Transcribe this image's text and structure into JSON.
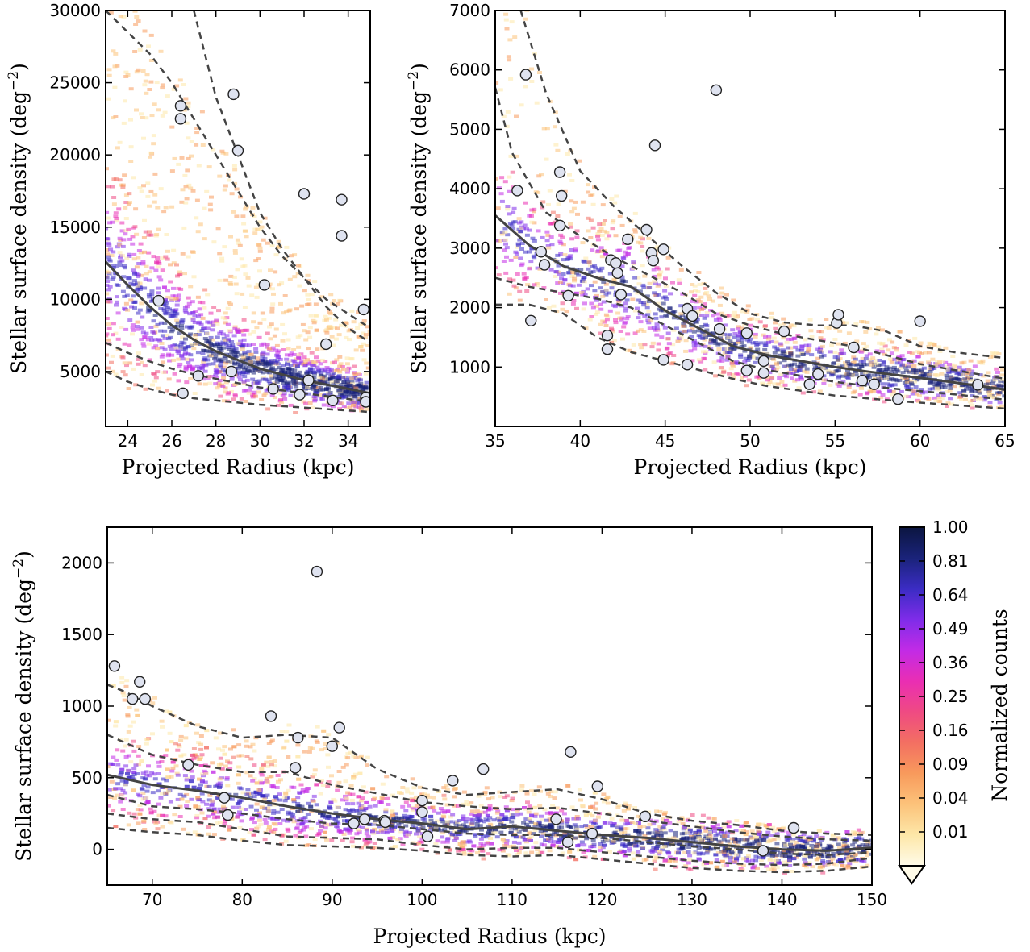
{
  "chart_data": [
    {
      "type": "scatter",
      "panel": "top-left",
      "xlabel": "Projected Radius (kpc)",
      "ylabel_main": "Stellar surface density",
      "ylabel_unit": "(deg",
      "ylabel_exp": "−2",
      "ylabel_close": ")",
      "xlim": [
        23,
        35
      ],
      "ylim": [
        1200,
        30000
      ],
      "xticks": [
        24,
        26,
        28,
        30,
        32,
        34
      ],
      "yticks": [
        5000,
        10000,
        15000,
        20000,
        25000,
        30000
      ],
      "density_color_range": [
        0.01,
        1.0
      ],
      "median_curve": {
        "x": [
          23,
          24,
          25,
          26,
          27,
          28,
          29,
          30,
          31,
          32,
          33,
          34,
          35
        ],
        "y": [
          12600,
          11000,
          9500,
          8200,
          7200,
          6400,
          5800,
          5200,
          4800,
          4400,
          4100,
          3800,
          3500
        ]
      },
      "band_curves": [
        {
          "x": [
            23,
            24,
            25,
            26,
            27,
            28,
            29,
            30,
            31,
            32,
            33,
            34,
            35
          ],
          "y": [
            30000,
            28500,
            27000,
            25000,
            22500,
            20000,
            17500,
            15000,
            13000,
            11500,
            10000,
            9000,
            8000
          ]
        },
        {
          "x": [
            27,
            28,
            29,
            30,
            31,
            32,
            33,
            34,
            35
          ],
          "y": [
            30000,
            24000,
            20000,
            16000,
            13500,
            11500,
            9500,
            8000,
            7000
          ]
        },
        {
          "x": [
            23,
            24,
            25,
            26,
            27,
            28,
            29,
            30,
            31,
            32,
            33,
            34,
            35
          ],
          "y": [
            7000,
            6300,
            5700,
            5200,
            4800,
            4500,
            4200,
            3900,
            3700,
            3500,
            3300,
            3100,
            2900
          ]
        },
        {
          "x": [
            23,
            24,
            25,
            26,
            27,
            28,
            29,
            30,
            31,
            32,
            33,
            34,
            35
          ],
          "y": [
            5000,
            4300,
            3800,
            3400,
            3150,
            3000,
            2850,
            2700,
            2600,
            2500,
            2400,
            2300,
            2200
          ]
        }
      ],
      "points": [
        {
          "x": 25.4,
          "y": 9900
        },
        {
          "x": 26.4,
          "y": 23400
        },
        {
          "x": 26.4,
          "y": 22500
        },
        {
          "x": 26.5,
          "y": 3500
        },
        {
          "x": 27.2,
          "y": 4700
        },
        {
          "x": 28.7,
          "y": 5000
        },
        {
          "x": 28.8,
          "y": 24200
        },
        {
          "x": 29.0,
          "y": 20300
        },
        {
          "x": 30.2,
          "y": 11000
        },
        {
          "x": 30.6,
          "y": 3800
        },
        {
          "x": 31.8,
          "y": 3400
        },
        {
          "x": 32.0,
          "y": 17300
        },
        {
          "x": 32.2,
          "y": 4400
        },
        {
          "x": 33.0,
          "y": 6900
        },
        {
          "x": 33.3,
          "y": 3000
        },
        {
          "x": 33.7,
          "y": 16900
        },
        {
          "x": 33.7,
          "y": 14400
        },
        {
          "x": 34.7,
          "y": 9300
        },
        {
          "x": 34.8,
          "y": 3200
        },
        {
          "x": 34.8,
          "y": 2900
        }
      ]
    },
    {
      "type": "scatter",
      "panel": "top-right",
      "xlabel": "Projected Radius (kpc)",
      "ylabel_main": "Stellar surface density",
      "ylabel_unit": "(deg",
      "ylabel_exp": "−2",
      "ylabel_close": ")",
      "xlim": [
        35,
        65
      ],
      "ylim": [
        0,
        7000
      ],
      "xticks": [
        35,
        40,
        45,
        50,
        55,
        60,
        65
      ],
      "yticks": [
        1000,
        2000,
        3000,
        4000,
        5000,
        6000,
        7000
      ],
      "density_color_range": [
        0.01,
        1.0
      ],
      "median_curve": {
        "x": [
          35,
          37,
          39,
          41,
          43,
          45,
          47,
          49,
          51,
          53,
          55,
          57,
          59,
          61,
          63,
          65
        ],
        "y": [
          3550,
          3050,
          2700,
          2500,
          2350,
          1950,
          1650,
          1350,
          1200,
          1100,
          1000,
          920,
          850,
          780,
          700,
          620
        ]
      },
      "band_curves": [
        {
          "x": [
            36.5,
            38,
            40,
            42,
            44,
            46,
            48,
            50,
            52,
            54,
            56,
            58,
            60,
            62,
            65
          ],
          "y": [
            7000,
            5600,
            4300,
            3700,
            3200,
            2700,
            2250,
            1900,
            1750,
            1700,
            1700,
            1600,
            1350,
            1250,
            1150
          ]
        },
        {
          "x": [
            35,
            36,
            38,
            40,
            42,
            44,
            46,
            48,
            50,
            52,
            54,
            56,
            58,
            60,
            65
          ],
          "y": [
            5700,
            4600,
            3600,
            3200,
            2850,
            2550,
            2250,
            1900,
            1700,
            1550,
            1450,
            1350,
            1200,
            1050,
            800
          ]
        },
        {
          "x": [
            35,
            37,
            39,
            41,
            43,
            45,
            47,
            49,
            51,
            53,
            55,
            57,
            59,
            61,
            65
          ],
          "y": [
            2500,
            2350,
            2250,
            2150,
            2000,
            1700,
            1400,
            1100,
            950,
            850,
            750,
            680,
            620,
            570,
            450
          ]
        },
        {
          "x": [
            35,
            37,
            39,
            41,
            43,
            45,
            47,
            49,
            51,
            53,
            55,
            57,
            59,
            61,
            65
          ],
          "y": [
            2050,
            2050,
            1900,
            1500,
            1250,
            1100,
            950,
            800,
            680,
            600,
            520,
            470,
            420,
            380,
            300
          ]
        }
      ],
      "points": [
        {
          "x": 36.3,
          "y": 3970
        },
        {
          "x": 36.8,
          "y": 5920
        },
        {
          "x": 37.1,
          "y": 1780
        },
        {
          "x": 37.7,
          "y": 2940
        },
        {
          "x": 37.9,
          "y": 2720
        },
        {
          "x": 38.8,
          "y": 4280
        },
        {
          "x": 38.9,
          "y": 3880
        },
        {
          "x": 38.8,
          "y": 3380
        },
        {
          "x": 39.3,
          "y": 2200
        },
        {
          "x": 41.6,
          "y": 1530
        },
        {
          "x": 41.6,
          "y": 1300
        },
        {
          "x": 41.8,
          "y": 2800
        },
        {
          "x": 42.1,
          "y": 2750
        },
        {
          "x": 42.2,
          "y": 2580
        },
        {
          "x": 42.4,
          "y": 2220
        },
        {
          "x": 42.8,
          "y": 3150
        },
        {
          "x": 43.9,
          "y": 3310
        },
        {
          "x": 44.2,
          "y": 2920
        },
        {
          "x": 44.3,
          "y": 2790
        },
        {
          "x": 44.4,
          "y": 4730
        },
        {
          "x": 44.9,
          "y": 1120
        },
        {
          "x": 44.9,
          "y": 2980
        },
        {
          "x": 46.3,
          "y": 1980
        },
        {
          "x": 46.3,
          "y": 1040
        },
        {
          "x": 46.6,
          "y": 1860
        },
        {
          "x": 48.0,
          "y": 5660
        },
        {
          "x": 48.2,
          "y": 1640
        },
        {
          "x": 49.8,
          "y": 1570
        },
        {
          "x": 49.8,
          "y": 940
        },
        {
          "x": 50.8,
          "y": 1100
        },
        {
          "x": 50.8,
          "y": 900
        },
        {
          "x": 52.0,
          "y": 1600
        },
        {
          "x": 53.5,
          "y": 710
        },
        {
          "x": 54.0,
          "y": 880
        },
        {
          "x": 55.1,
          "y": 1740
        },
        {
          "x": 55.2,
          "y": 1880
        },
        {
          "x": 56.1,
          "y": 1330
        },
        {
          "x": 56.6,
          "y": 770
        },
        {
          "x": 57.3,
          "y": 710
        },
        {
          "x": 58.7,
          "y": 460
        },
        {
          "x": 60.0,
          "y": 1770
        },
        {
          "x": 63.4,
          "y": 700
        }
      ]
    },
    {
      "type": "scatter",
      "panel": "bottom",
      "xlabel": "Projected Radius (kpc)",
      "ylabel_main": "Stellar surface density",
      "ylabel_unit": "(deg",
      "ylabel_exp": "−2",
      "ylabel_close": ")",
      "xlim": [
        65,
        150
      ],
      "ylim": [
        -250,
        2250
      ],
      "xticks": [
        70,
        80,
        90,
        100,
        110,
        120,
        130,
        140,
        150
      ],
      "yticks": [
        0,
        500,
        1000,
        1500,
        2000
      ],
      "density_color_range": [
        0.01,
        1.0
      ],
      "median_curve": {
        "x": [
          65,
          70,
          75,
          80,
          85,
          90,
          95,
          100,
          105,
          110,
          115,
          120,
          125,
          130,
          135,
          140,
          145,
          150
        ],
        "y": [
          520,
          450,
          410,
          360,
          300,
          250,
          210,
          180,
          140,
          160,
          130,
          100,
          80,
          50,
          20,
          0,
          -10,
          10
        ]
      },
      "band_curves": [
        {
          "x": [
            65,
            67,
            70,
            75,
            80,
            85,
            90,
            95,
            100,
            105,
            110,
            115,
            120,
            125,
            130,
            135,
            140,
            145,
            150
          ],
          "y": [
            1150,
            1100,
            1000,
            860,
            780,
            800,
            780,
            560,
            430,
            380,
            400,
            420,
            350,
            250,
            200,
            170,
            130,
            110,
            100
          ]
        },
        {
          "x": [
            65,
            70,
            75,
            80,
            85,
            90,
            95,
            100,
            105,
            110,
            115,
            120,
            125,
            130,
            135,
            140,
            145,
            150
          ],
          "y": [
            800,
            660,
            590,
            540,
            540,
            450,
            390,
            330,
            300,
            280,
            290,
            250,
            200,
            160,
            120,
            90,
            70,
            60
          ]
        },
        {
          "x": [
            65,
            70,
            75,
            80,
            85,
            90,
            95,
            100,
            105,
            110,
            115,
            120,
            125,
            130,
            135,
            140,
            145,
            150
          ],
          "y": [
            380,
            300,
            280,
            250,
            210,
            180,
            170,
            140,
            110,
            100,
            100,
            80,
            50,
            20,
            0,
            -30,
            -40,
            -20
          ]
        },
        {
          "x": [
            65,
            70,
            75,
            80,
            85,
            90,
            95,
            100,
            105,
            110,
            115,
            120,
            125,
            130,
            135,
            140,
            145,
            150
          ],
          "y": [
            250,
            210,
            190,
            140,
            90,
            80,
            70,
            30,
            0,
            10,
            10,
            -20,
            -50,
            -80,
            -100,
            -110,
            -100,
            -60
          ]
        },
        {
          "x": [
            65,
            70,
            75,
            80,
            85,
            90,
            95,
            100,
            105,
            110,
            115,
            120,
            125,
            130,
            135,
            140,
            145,
            150
          ],
          "y": [
            150,
            120,
            100,
            60,
            30,
            20,
            10,
            -10,
            -40,
            -50,
            -40,
            -70,
            -100,
            -130,
            -150,
            -160,
            -150,
            -120
          ]
        }
      ],
      "points": [
        {
          "x": 65.8,
          "y": 1280
        },
        {
          "x": 67.8,
          "y": 1050
        },
        {
          "x": 68.6,
          "y": 1170
        },
        {
          "x": 69.2,
          "y": 1050
        },
        {
          "x": 74.0,
          "y": 590
        },
        {
          "x": 78.0,
          "y": 360
        },
        {
          "x": 78.4,
          "y": 240
        },
        {
          "x": 83.2,
          "y": 930
        },
        {
          "x": 85.9,
          "y": 570
        },
        {
          "x": 86.2,
          "y": 780
        },
        {
          "x": 88.3,
          "y": 1940
        },
        {
          "x": 90.0,
          "y": 720
        },
        {
          "x": 90.8,
          "y": 850
        },
        {
          "x": 92.4,
          "y": 180
        },
        {
          "x": 93.6,
          "y": 210
        },
        {
          "x": 95.8,
          "y": 200
        },
        {
          "x": 95.9,
          "y": 190
        },
        {
          "x": 100.0,
          "y": 340
        },
        {
          "x": 100.0,
          "y": 260
        },
        {
          "x": 100.6,
          "y": 90
        },
        {
          "x": 103.4,
          "y": 480
        },
        {
          "x": 106.8,
          "y": 560
        },
        {
          "x": 114.9,
          "y": 210
        },
        {
          "x": 116.2,
          "y": 50
        },
        {
          "x": 116.5,
          "y": 680
        },
        {
          "x": 118.9,
          "y": 110
        },
        {
          "x": 119.5,
          "y": 440
        },
        {
          "x": 124.8,
          "y": 230
        },
        {
          "x": 137.9,
          "y": -10
        },
        {
          "x": 141.3,
          "y": 150
        }
      ]
    }
  ],
  "colorbar": {
    "label": "Normalized counts",
    "ticks": [
      "1.00",
      "0.81",
      "0.64",
      "0.49",
      "0.36",
      "0.25",
      "0.16",
      "0.09",
      "0.04",
      "0.01"
    ],
    "colors": [
      "#fffbe8",
      "#fde7a8",
      "#fcc27a",
      "#f89a5c",
      "#f36f62",
      "#ef4a83",
      "#ea2eb3",
      "#c22be6",
      "#7f2ce9",
      "#3b2cc4",
      "#1a237a",
      "#0b1540"
    ]
  }
}
